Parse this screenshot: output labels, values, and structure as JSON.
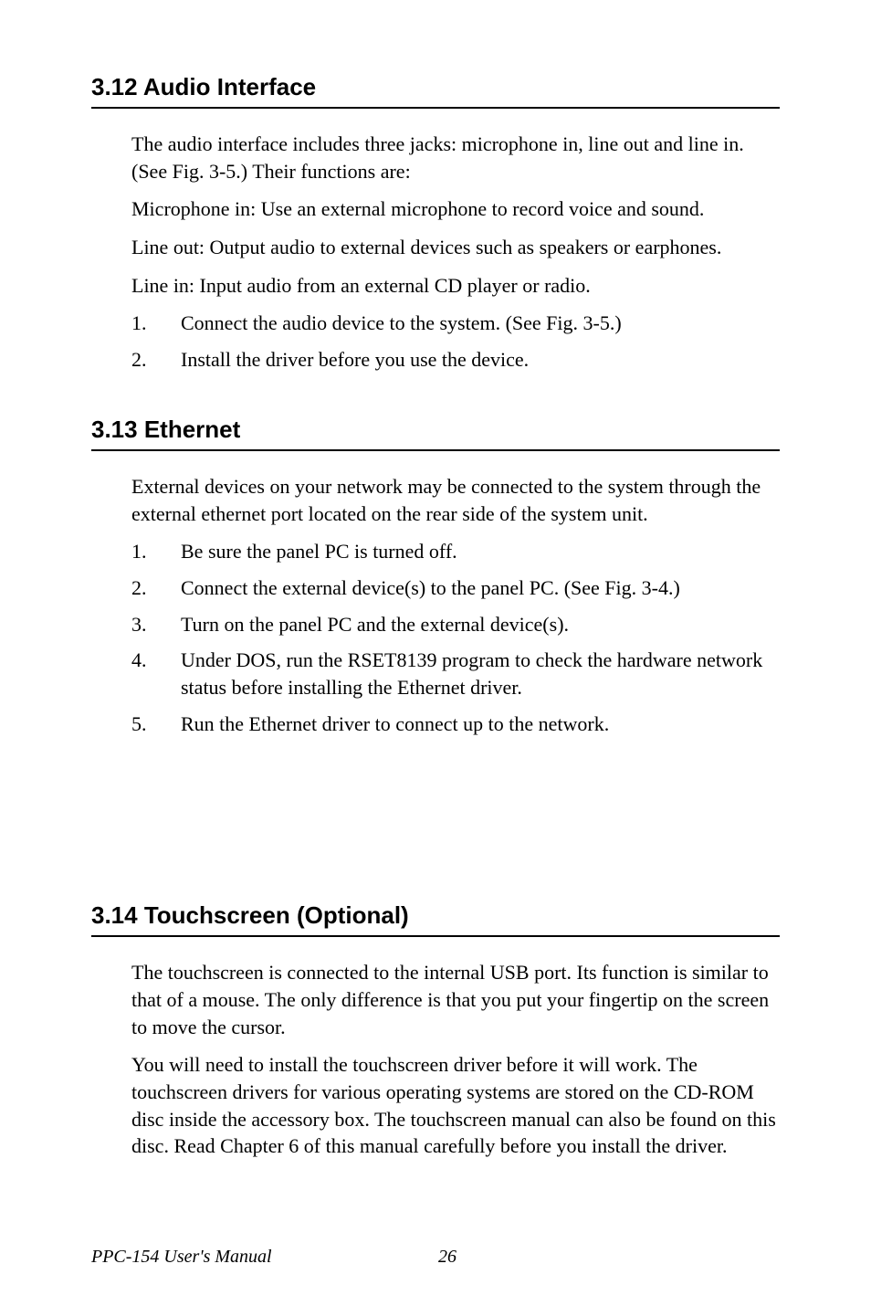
{
  "sections": {
    "s1": {
      "heading": "3.12  Audio Interface",
      "p1": "The audio interface includes three jacks: microphone in, line out and line in. (See Fig. 3-5.) Their functions are:",
      "p2": "Microphone in: Use an external microphone to record voice and sound.",
      "p3": "Line out: Output audio to external devices such as speakers or earphones.",
      "p4": "Line in: Input audio from an external CD player or radio.",
      "li1_num": "1.",
      "li1_txt": "Connect the audio device to the system. (See Fig. 3-5.)",
      "li2_num": "2.",
      "li2_txt": "Install the driver before you use the device."
    },
    "s2": {
      "heading": "3.13  Ethernet",
      "p1": "External devices on your network may be connected to the system through the external ethernet port located on the rear side of the system unit.",
      "li1_num": "1.",
      "li1_txt": "Be sure the panel PC is turned off.",
      "li2_num": "2.",
      "li2_txt": "Connect the external device(s) to the panel PC. (See Fig. 3-4.)",
      "li3_num": "3.",
      "li3_txt": "Turn on the panel PC and the external device(s).",
      "li4_num": "4.",
      "li4_txt": "Under DOS, run the RSET8139 program to check the hardware network status before installing the Ethernet driver.",
      "li5_num": "5.",
      "li5_txt": "Run the Ethernet driver to connect up to the network."
    },
    "s3": {
      "heading": "3.14  Touchscreen (Optional)",
      "p1": "The touchscreen is connected to the internal USB port. Its function is similar to that of a mouse. The only difference is that you put your fingertip on the screen to move the cursor.",
      "p2": "You will need to install the touchscreen driver before it will work. The touchscreen drivers for various operating systems are stored on the CD-ROM disc inside the accessory box. The touchscreen manual can also be found on this disc. Read Chapter 6 of this manual carefully before you install the driver."
    }
  },
  "footer": {
    "title": "PPC-154 User's Manual",
    "page": "26"
  }
}
